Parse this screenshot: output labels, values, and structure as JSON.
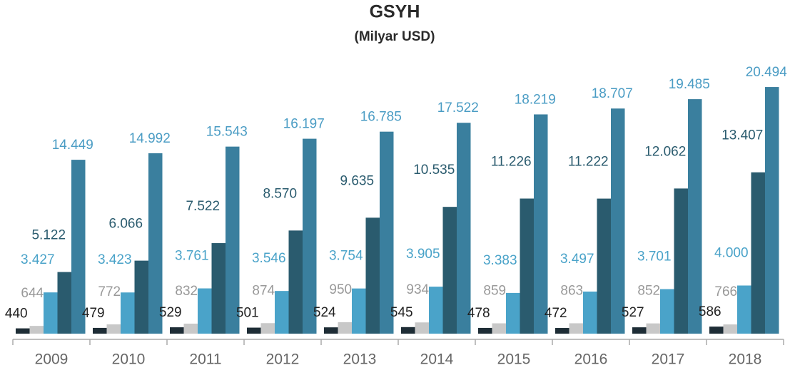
{
  "chart_data": {
    "type": "bar",
    "title": "GSYH",
    "subtitle": "(Milyar USD)",
    "categories": [
      "2009",
      "2010",
      "2011",
      "2012",
      "2013",
      "2014",
      "2015",
      "2016",
      "2017",
      "2018"
    ],
    "ylim": [
      0,
      25000
    ],
    "series": [
      {
        "color": "#1e2d36",
        "values": [
          440,
          479,
          529,
          501,
          524,
          545,
          478,
          472,
          527,
          586
        ]
      },
      {
        "color": "#c8c8c8",
        "values": [
          644,
          772,
          832,
          874,
          950,
          934,
          859,
          863,
          852,
          766
        ]
      },
      {
        "color": "#4aa3c9",
        "values": [
          3427,
          3423,
          3761,
          3546,
          3754,
          3905,
          3383,
          3497,
          3701,
          4000
        ],
        "value_labels": [
          "3.427",
          "3.423",
          "3.761",
          "3.546",
          "3.754",
          "3.905",
          "3.383",
          "3.497",
          "3.701",
          "4.000"
        ]
      },
      {
        "color": "#2a5b6e",
        "values": [
          5122,
          6066,
          7522,
          8570,
          9635,
          10535,
          11226,
          11222,
          12062,
          13407
        ],
        "value_labels": [
          "5.122",
          "6.066",
          "7.522",
          "8.570",
          "9.635",
          "10.535",
          "11.226",
          "11.222",
          "12.062",
          "13.407"
        ]
      },
      {
        "color": "#3a7f9e",
        "values": [
          14449,
          14992,
          15543,
          16197,
          16785,
          17522,
          18219,
          18707,
          19485,
          20494
        ],
        "value_labels": [
          "14.449",
          "14.992",
          "15.543",
          "16.197",
          "16.785",
          "17.522",
          "18.219",
          "18.707",
          "19.485",
          "20.494"
        ]
      }
    ]
  }
}
